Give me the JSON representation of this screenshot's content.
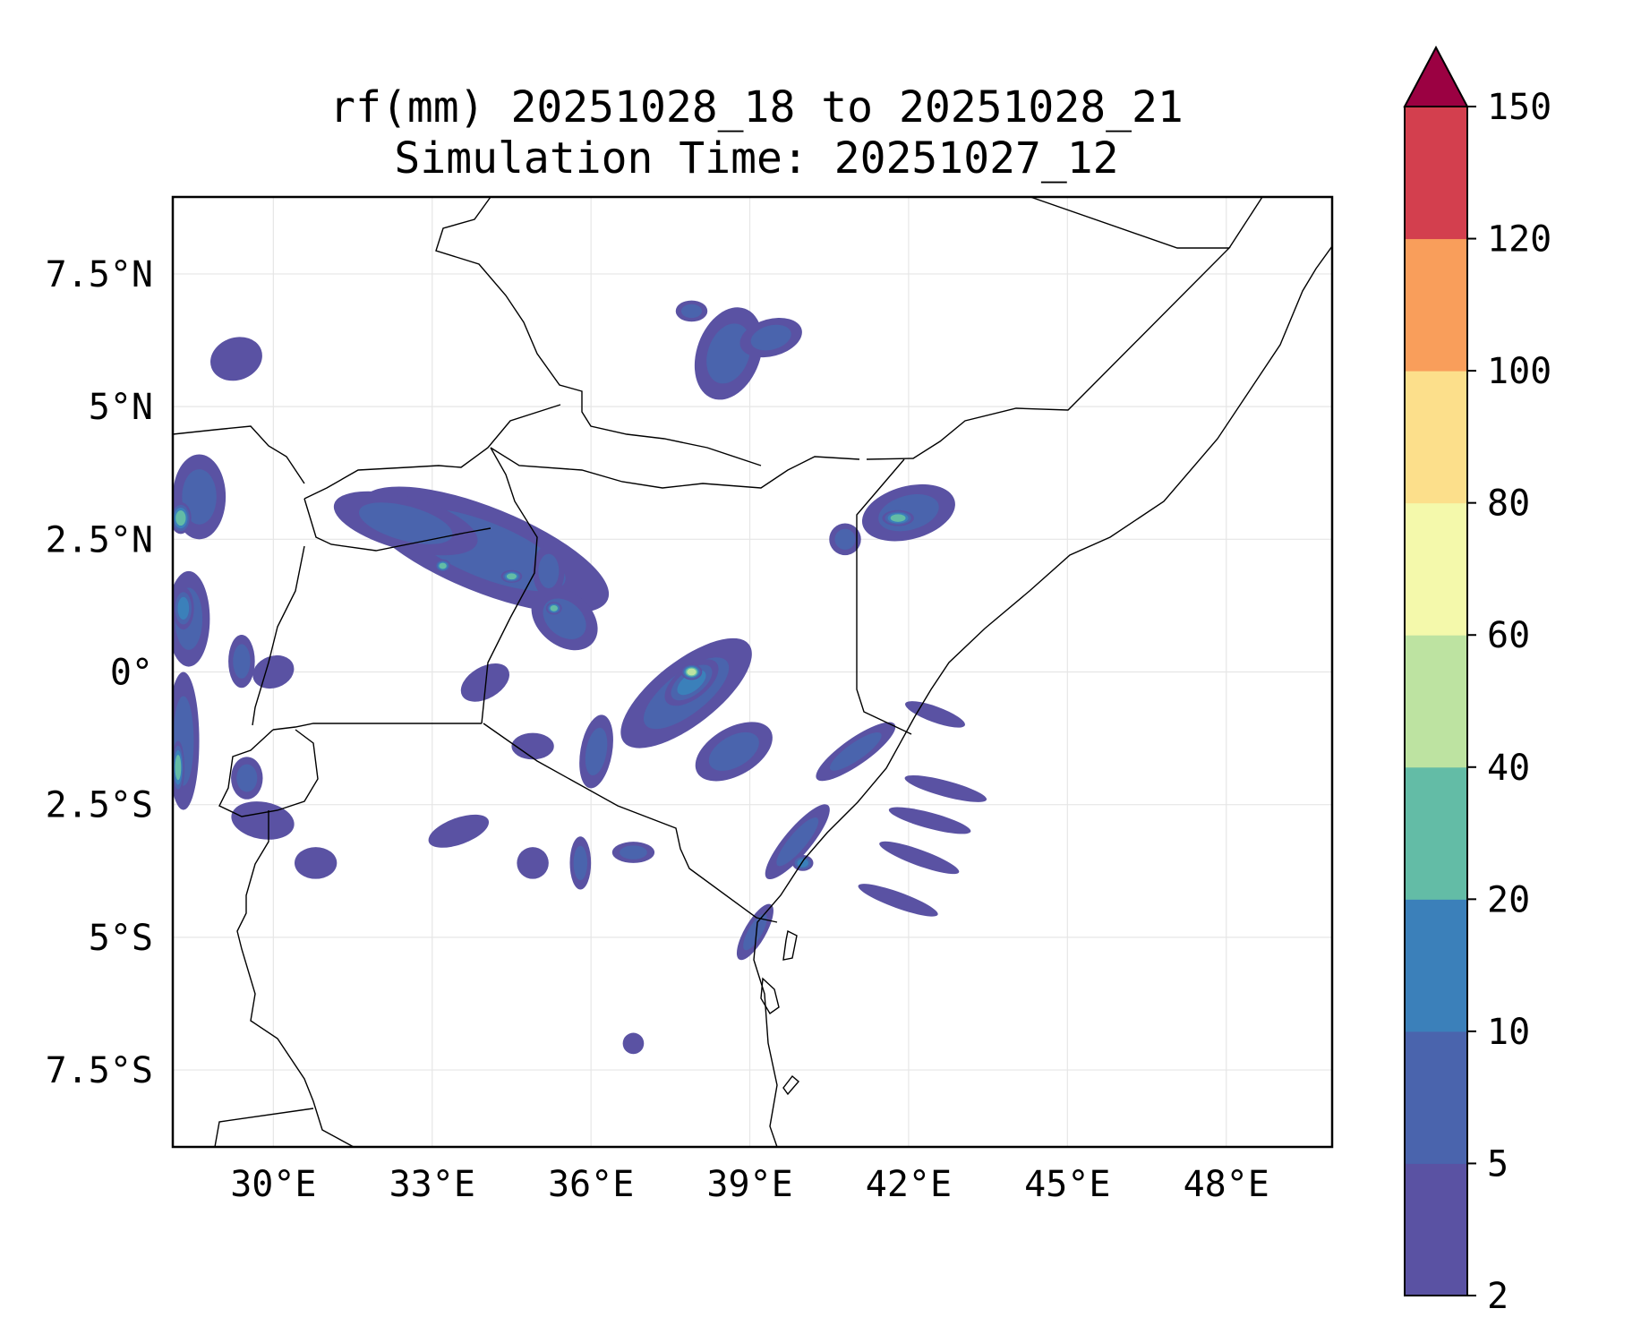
{
  "title": {
    "line1": "rf(mm) 20251028_18 to 20251028_21",
    "line2": "Simulation Time: 20251027_12"
  },
  "map": {
    "extent": {
      "lon": [
        28.1,
        50.0
      ],
      "lat": [
        -8.95,
        8.95
      ]
    },
    "x_ticks": [
      {
        "value": 30,
        "label": "30°E"
      },
      {
        "value": 33,
        "label": "33°E"
      },
      {
        "value": 36,
        "label": "36°E"
      },
      {
        "value": 39,
        "label": "39°E"
      },
      {
        "value": 42,
        "label": "42°E"
      },
      {
        "value": 45,
        "label": "45°E"
      },
      {
        "value": 48,
        "label": "48°E"
      }
    ],
    "y_ticks": [
      {
        "value": 7.5,
        "label": "7.5°N"
      },
      {
        "value": 5,
        "label": "5°N"
      },
      {
        "value": 2.5,
        "label": "2.5°N"
      },
      {
        "value": 0,
        "label": "0°"
      },
      {
        "value": -2.5,
        "label": "2.5°S"
      },
      {
        "value": -5,
        "label": "5°S"
      },
      {
        "value": -7.5,
        "label": "7.5°S"
      }
    ]
  },
  "colorbar": {
    "levels": [
      "2",
      "5",
      "10",
      "20",
      "40",
      "60",
      "80",
      "100",
      "120",
      "150"
    ],
    "colors": [
      "#5a52a3",
      "#4a64ad",
      "#3b80ba",
      "#63bca6",
      "#bde3a1",
      "#f4f9ab",
      "#fcdf8b",
      "#f99e5b",
      "#d33f4e"
    ],
    "extend_color": "#9b0142"
  },
  "chart_data": {
    "type": "heatmap",
    "title": "rf(mm) 20251028_18 to 20251028_21",
    "subtitle": "Simulation Time: 20251027_12",
    "variable": "rf(mm)",
    "xlabel": "",
    "ylabel": "",
    "xlim": [
      28.1,
      50.0
    ],
    "ylim": [
      -8.95,
      8.95
    ],
    "colorbar_levels": [
      2,
      5,
      10,
      20,
      40,
      60,
      80,
      100,
      120,
      150
    ],
    "extend": "max",
    "rain_cells": [
      {
        "lon": 28.6,
        "lat": 3.3,
        "rx": 0.5,
        "ry": 0.8,
        "rot": 0,
        "level": 1
      },
      {
        "lon": 28.25,
        "lat": 2.9,
        "rx": 0.2,
        "ry": 0.3,
        "rot": 0,
        "level": 3
      },
      {
        "lon": 28.4,
        "lat": 1.0,
        "rx": 0.4,
        "ry": 0.9,
        "rot": 0,
        "level": 1
      },
      {
        "lon": 28.3,
        "lat": 1.2,
        "rx": 0.2,
        "ry": 0.4,
        "rot": 0,
        "level": 2
      },
      {
        "lon": 28.3,
        "lat": -1.3,
        "rx": 0.3,
        "ry": 1.3,
        "rot": 0,
        "level": 1
      },
      {
        "lon": 28.2,
        "lat": -1.8,
        "rx": 0.12,
        "ry": 0.5,
        "rot": 0,
        "level": 3
      },
      {
        "lon": 29.4,
        "lat": 0.2,
        "rx": 0.25,
        "ry": 0.5,
        "rot": 0,
        "level": 1
      },
      {
        "lon": 30.0,
        "lat": 0.0,
        "rx": 0.4,
        "ry": 0.3,
        "rot": -20,
        "level": 0
      },
      {
        "lon": 29.3,
        "lat": 5.9,
        "rx": 0.5,
        "ry": 0.4,
        "rot": -20,
        "level": 0
      },
      {
        "lon": 29.8,
        "lat": -2.8,
        "rx": 0.6,
        "ry": 0.35,
        "rot": 10,
        "level": 0
      },
      {
        "lon": 30.8,
        "lat": -3.6,
        "rx": 0.4,
        "ry": 0.3,
        "rot": 0,
        "level": 0
      },
      {
        "lon": 29.5,
        "lat": -2.0,
        "rx": 0.3,
        "ry": 0.4,
        "rot": 0,
        "level": 1
      },
      {
        "lon": 34.0,
        "lat": 2.3,
        "rx": 2.5,
        "ry": 0.8,
        "rot": 22,
        "level": 1
      },
      {
        "lon": 32.5,
        "lat": 2.8,
        "rx": 1.4,
        "ry": 0.5,
        "rot": 15,
        "level": 1
      },
      {
        "lon": 33.2,
        "lat": 2.0,
        "rx": 0.15,
        "ry": 0.12,
        "rot": 0,
        "level": 3
      },
      {
        "lon": 34.5,
        "lat": 1.8,
        "rx": 0.2,
        "ry": 0.12,
        "rot": 0,
        "level": 3
      },
      {
        "lon": 35.5,
        "lat": 1.0,
        "rx": 0.7,
        "ry": 0.5,
        "rot": 40,
        "level": 1
      },
      {
        "lon": 35.3,
        "lat": 1.2,
        "rx": 0.15,
        "ry": 0.12,
        "rot": 0,
        "level": 3
      },
      {
        "lon": 37.8,
        "lat": -0.4,
        "rx": 1.5,
        "ry": 0.6,
        "rot": -38,
        "level": 1
      },
      {
        "lon": 37.9,
        "lat": -0.2,
        "rx": 0.6,
        "ry": 0.3,
        "rot": -38,
        "level": 2
      },
      {
        "lon": 37.9,
        "lat": 0.0,
        "rx": 0.2,
        "ry": 0.15,
        "rot": 0,
        "level": 4
      },
      {
        "lon": 38.7,
        "lat": -1.5,
        "rx": 0.8,
        "ry": 0.45,
        "rot": -30,
        "level": 1
      },
      {
        "lon": 36.1,
        "lat": -1.5,
        "rx": 0.3,
        "ry": 0.7,
        "rot": 10,
        "level": 1
      },
      {
        "lon": 35.2,
        "lat": 1.9,
        "rx": 0.3,
        "ry": 0.5,
        "rot": 0,
        "level": 1
      },
      {
        "lon": 38.6,
        "lat": 6.0,
        "rx": 0.6,
        "ry": 0.9,
        "rot": 20,
        "level": 1
      },
      {
        "lon": 39.4,
        "lat": 6.3,
        "rx": 0.6,
        "ry": 0.35,
        "rot": -15,
        "level": 1
      },
      {
        "lon": 37.9,
        "lat": 6.8,
        "rx": 0.3,
        "ry": 0.2,
        "rot": 0,
        "level": 1
      },
      {
        "lon": 42.0,
        "lat": 3.0,
        "rx": 0.9,
        "ry": 0.5,
        "rot": -15,
        "level": 1
      },
      {
        "lon": 41.8,
        "lat": 2.9,
        "rx": 0.3,
        "ry": 0.15,
        "rot": 0,
        "level": 3
      },
      {
        "lon": 40.8,
        "lat": 2.5,
        "rx": 0.3,
        "ry": 0.3,
        "rot": 0,
        "level": 1
      },
      {
        "lon": 41.0,
        "lat": -1.5,
        "rx": 0.9,
        "ry": 0.25,
        "rot": -35,
        "level": 1
      },
      {
        "lon": 39.9,
        "lat": -3.2,
        "rx": 0.9,
        "ry": 0.25,
        "rot": -50,
        "level": 1
      },
      {
        "lon": 40.0,
        "lat": -3.6,
        "rx": 0.2,
        "ry": 0.15,
        "rot": 0,
        "level": 2
      },
      {
        "lon": 39.1,
        "lat": -4.9,
        "rx": 0.6,
        "ry": 0.2,
        "rot": -60,
        "level": 1
      },
      {
        "lon": 42.5,
        "lat": -0.8,
        "rx": 0.6,
        "ry": 0.15,
        "rot": 20,
        "level": 0
      },
      {
        "lon": 42.7,
        "lat": -2.2,
        "rx": 0.8,
        "ry": 0.15,
        "rot": 15,
        "level": 0
      },
      {
        "lon": 42.4,
        "lat": -2.8,
        "rx": 0.8,
        "ry": 0.15,
        "rot": 15,
        "level": 0
      },
      {
        "lon": 42.2,
        "lat": -3.5,
        "rx": 0.8,
        "ry": 0.15,
        "rot": 20,
        "level": 0
      },
      {
        "lon": 41.8,
        "lat": -4.3,
        "rx": 0.8,
        "ry": 0.15,
        "rot": 20,
        "level": 0
      },
      {
        "lon": 33.5,
        "lat": -3.0,
        "rx": 0.6,
        "ry": 0.25,
        "rot": -20,
        "level": 0
      },
      {
        "lon": 36.8,
        "lat": -3.4,
        "rx": 0.4,
        "ry": 0.2,
        "rot": 0,
        "level": 1
      },
      {
        "lon": 35.8,
        "lat": -3.6,
        "rx": 0.2,
        "ry": 0.5,
        "rot": 0,
        "level": 1
      },
      {
        "lon": 34.9,
        "lat": -3.6,
        "rx": 0.3,
        "ry": 0.3,
        "rot": 0,
        "level": 0
      },
      {
        "lon": 36.8,
        "lat": -7.0,
        "rx": 0.2,
        "ry": 0.2,
        "rot": 0,
        "level": 0
      },
      {
        "lon": 34.0,
        "lat": -0.2,
        "rx": 0.5,
        "ry": 0.3,
        "rot": -30,
        "level": 0
      },
      {
        "lon": 34.9,
        "lat": -1.4,
        "rx": 0.4,
        "ry": 0.25,
        "rot": 0,
        "level": 0
      }
    ]
  }
}
